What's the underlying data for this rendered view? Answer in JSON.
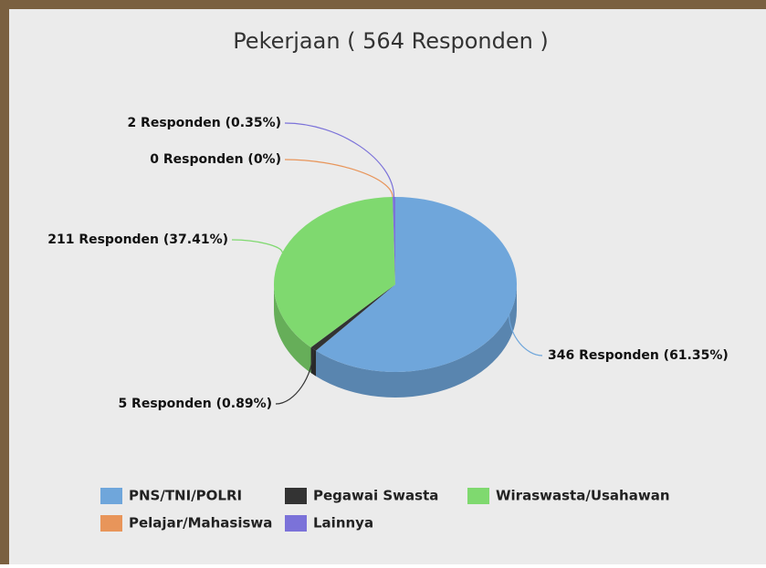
{
  "chart_data": {
    "type": "pie",
    "title": "Pekerjaan ( 564 Responden )",
    "categories": [
      "PNS/TNI/POLRI",
      "Pegawai Swasta",
      "Wiraswasta/Usahawan",
      "Pelajar/Mahasiswa",
      "Lainnya"
    ],
    "values": [
      346,
      5,
      211,
      0,
      2
    ],
    "value_labels": [
      "346 Responden (61.35%)",
      "5 Responden (0.89%)",
      "211 Responden (37.41%)",
      "0 Responden (0%)",
      "2 Responden (0.35%)"
    ],
    "colors": [
      "#6fa6db",
      "#333333",
      "#7fd96f",
      "#e8955a",
      "#7b72d9"
    ]
  }
}
